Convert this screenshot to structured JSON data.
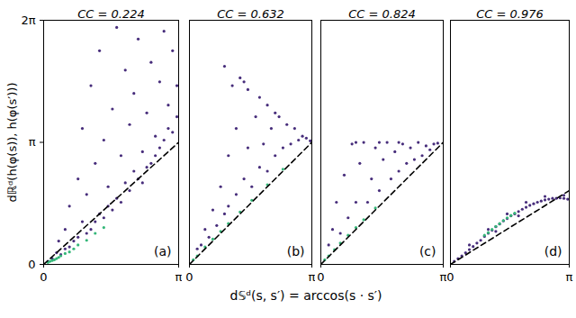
{
  "chart_data": {
    "type": "scatter",
    "xlabel": "d𝕊ᵈ(s, s′) = arccos(s · s′)",
    "ylabel": "dℝᵈ(h(φ(s)), h(φ(s′)))",
    "panels": [
      {
        "type": "scatter",
        "title": "CC = 0.224",
        "annotations": [
          "(a)"
        ],
        "xlim": [
          0,
          3.1416
        ],
        "ylim": [
          0,
          6.2832
        ],
        "xticks": [
          {
            "value": 0,
            "label": "0"
          },
          {
            "value": 3.1416,
            "label": "π"
          }
        ],
        "yticks": [
          {
            "value": 0,
            "label": "0"
          },
          {
            "value": 3.1416,
            "label": "π"
          },
          {
            "value": 6.2832,
            "label": "2π"
          }
        ],
        "series": [
          {
            "type": "scatter",
            "marker": "dot",
            "color": "#472d7b",
            "x": [
              0.1,
              0.2,
              0.3,
              0.35,
              0.4,
              0.5,
              0.5,
              0.6,
              0.6,
              0.7,
              0.8,
              0.8,
              0.9,
              0.9,
              1.0,
              1.0,
              1.1,
              1.1,
              1.2,
              1.2,
              1.3,
              1.3,
              1.4,
              1.4,
              1.5,
              1.5,
              1.6,
              1.6,
              1.7,
              1.7,
              1.8,
              1.8,
              1.9,
              1.9,
              2.0,
              2.0,
              2.1,
              2.1,
              2.2,
              2.2,
              2.3,
              2.3,
              2.4,
              2.4,
              2.5,
              2.5,
              2.6,
              2.6,
              2.7,
              2.7,
              2.8,
              2.8,
              2.9,
              2.9,
              3.0,
              3.0,
              3.1,
              3.1
            ],
            "values": [
              0.08,
              0.15,
              0.3,
              0.6,
              0.25,
              0.9,
              0.4,
              1.5,
              0.45,
              0.6,
              2.2,
              0.7,
              1.1,
              3.5,
              0.8,
              1.8,
              4.6,
              0.9,
              2.6,
              1.1,
              1.3,
              5.5,
              3.2,
              1.2,
              1.5,
              2.0,
              4.0,
              1.4,
              6.1,
              1.7,
              2.8,
              1.6,
              5.0,
              2.1,
              1.9,
              3.6,
              2.4,
              4.4,
              2.2,
              5.8,
              2.9,
              2.1,
              3.9,
              2.5,
              2.6,
              5.2,
              3.3,
              2.8,
              4.7,
              3.0,
              3.2,
              6.0,
              3.5,
              4.1,
              3.4,
              5.5,
              3.8,
              4.6
            ]
          },
          {
            "type": "scatter",
            "marker": "dot",
            "color": "#35b779",
            "x": [
              0.1,
              0.15,
              0.2,
              0.25,
              0.3,
              0.35,
              0.4,
              0.5,
              0.6,
              0.7,
              0.8,
              1.0,
              1.2,
              1.4
            ],
            "values": [
              0.05,
              0.08,
              0.1,
              0.12,
              0.15,
              0.18,
              0.22,
              0.28,
              0.32,
              0.4,
              0.5,
              0.62,
              0.8,
              0.95
            ]
          },
          {
            "type": "line",
            "line_style": "dashed",
            "color": "#000000",
            "x": [
              0,
              3.1416
            ],
            "values": [
              0,
              3.1416
            ]
          }
        ]
      },
      {
        "type": "scatter",
        "title": "CC = 0.632",
        "annotations": [
          "(b)"
        ],
        "tick_labels": "x",
        "xlim": [
          0,
          3.1416
        ],
        "ylim": [
          0,
          6.2832
        ],
        "xticks": [
          {
            "value": 0,
            "label": "0"
          },
          {
            "value": 3.1416,
            "label": "π"
          }
        ],
        "yticks": [
          0,
          3.1416,
          6.2832
        ],
        "series": [
          {
            "type": "scatter",
            "marker": "dot",
            "color": "#472d7b",
            "x": [
              0.2,
              0.3,
              0.4,
              0.5,
              0.6,
              0.7,
              0.8,
              0.9,
              1.0,
              1.0,
              1.1,
              1.2,
              1.2,
              1.3,
              1.4,
              1.5,
              1.5,
              1.6,
              1.7,
              1.8,
              1.8,
              1.9,
              2.0,
              2.0,
              2.1,
              2.2,
              2.3,
              2.4,
              2.5,
              2.6,
              2.7,
              2.8,
              2.9,
              3.0,
              3.1,
              0.9,
              1.4,
              2.2
            ],
            "values": [
              0.4,
              0.5,
              0.9,
              0.7,
              1.4,
              1.0,
              2.0,
              1.3,
              2.8,
              1.5,
              4.6,
              1.8,
              3.5,
              4.8,
              2.2,
              3.0,
              4.5,
              2.0,
              3.8,
              2.5,
              4.3,
              3.1,
              2.4,
              4.1,
              3.5,
              2.8,
              3.8,
              3.0,
              3.6,
              3.1,
              3.5,
              3.2,
              3.3,
              3.25,
              3.18,
              5.1,
              4.7,
              3.9
            ]
          },
          {
            "type": "scatter",
            "marker": "dot",
            "color": "#35b779",
            "x": [
              0.1,
              0.2,
              0.4,
              0.6,
              0.8,
              1.0,
              1.3,
              1.6,
              2.0,
              2.4
            ],
            "values": [
              0.12,
              0.22,
              0.45,
              0.65,
              0.85,
              1.05,
              1.35,
              1.65,
              2.05,
              2.45
            ]
          },
          {
            "type": "line",
            "line_style": "dashed",
            "color": "#000000",
            "x": [
              0,
              3.1416
            ],
            "values": [
              0,
              3.1416
            ]
          }
        ]
      },
      {
        "type": "scatter",
        "title": "CC = 0.824",
        "annotations": [
          "(c)"
        ],
        "tick_labels": "x",
        "xlim": [
          0,
          3.1416
        ],
        "ylim": [
          0,
          6.2832
        ],
        "xticks": [
          {
            "value": 0,
            "label": "0"
          },
          {
            "value": 3.1416,
            "label": "π"
          }
        ],
        "yticks": [
          0,
          3.1416,
          6.2832
        ],
        "series": [
          {
            "type": "scatter",
            "marker": "dot",
            "color": "#472d7b",
            "x": [
              0.2,
              0.3,
              0.4,
              0.5,
              0.6,
              0.7,
              0.8,
              0.9,
              1.0,
              1.1,
              1.2,
              1.3,
              1.4,
              1.5,
              1.6,
              1.7,
              1.8,
              1.9,
              2.0,
              2.1,
              2.2,
              2.3,
              2.4,
              2.5,
              2.6,
              2.7,
              2.8,
              2.9,
              3.0,
              1.5,
              0.9,
              2.0
            ],
            "values": [
              0.5,
              0.9,
              1.6,
              0.8,
              2.3,
              1.2,
              3.1,
              1.6,
              2.6,
              3.14,
              1.6,
              2.2,
              3.0,
              1.9,
              2.7,
              3.14,
              2.2,
              2.9,
              2.4,
              3.1,
              2.6,
              3.0,
              2.7,
              3.14,
              2.8,
              3.05,
              2.95,
              3.1,
              3.12,
              3.14,
              3.14,
              3.14
            ]
          },
          {
            "type": "scatter",
            "marker": "dot",
            "color": "#35b779",
            "x": [
              0.1,
              0.2,
              0.35,
              0.5,
              0.7,
              0.9,
              1.1,
              1.4
            ],
            "values": [
              0.12,
              0.22,
              0.38,
              0.55,
              0.75,
              0.95,
              1.15,
              1.45
            ]
          },
          {
            "type": "line",
            "line_style": "dashed",
            "color": "#000000",
            "x": [
              0,
              3.1416
            ],
            "values": [
              0,
              3.1416
            ]
          }
        ]
      },
      {
        "type": "scatter",
        "title": "CC = 0.976",
        "annotations": [
          "(d)"
        ],
        "tick_labels": "x",
        "xlim": [
          0,
          3.1416
        ],
        "ylim": [
          0,
          6.2832
        ],
        "xticks": [
          {
            "value": 0,
            "label": "0"
          },
          {
            "value": 3.1416,
            "label": "π"
          }
        ],
        "yticks": [
          0,
          3.1416,
          6.2832
        ],
        "series": [
          {
            "type": "scatter",
            "marker": "dot",
            "color": "#472d7b",
            "x": [
              0.1,
              0.2,
              0.3,
              0.4,
              0.5,
              0.6,
              0.7,
              0.8,
              0.9,
              1.0,
              1.1,
              1.2,
              1.3,
              1.4,
              1.5,
              1.6,
              1.7,
              1.8,
              1.9,
              2.0,
              2.1,
              2.2,
              2.3,
              2.4,
              2.5,
              2.6,
              2.7,
              2.8,
              2.9,
              3.0,
              3.1,
              0.5,
              1.0,
              1.5,
              2.0,
              2.5,
              3.0,
              1.2,
              1.8
            ],
            "values": [
              0.08,
              0.15,
              0.22,
              0.3,
              0.38,
              0.46,
              0.55,
              0.62,
              0.72,
              0.8,
              0.88,
              0.97,
              1.04,
              1.12,
              1.18,
              1.25,
              1.3,
              1.36,
              1.42,
              1.47,
              1.52,
              1.56,
              1.6,
              1.63,
              1.66,
              1.68,
              1.7,
              1.7,
              1.71,
              1.7,
              1.68,
              0.5,
              0.9,
              1.3,
              1.6,
              1.75,
              1.78,
              0.85,
              1.25
            ]
          },
          {
            "type": "scatter",
            "marker": "dot",
            "color": "#35b779",
            "x": [
              0.9,
              1.0,
              1.1,
              1.2,
              1.3,
              1.4,
              1.5,
              1.6,
              1.7
            ],
            "values": [
              0.75,
              0.82,
              0.9,
              0.98,
              1.05,
              1.13,
              1.2,
              1.26,
              1.32
            ]
          },
          {
            "type": "line",
            "line_style": "dashed",
            "color": "#000000",
            "x": [
              0,
              3.1416
            ],
            "values": [
              0,
              1.9
            ]
          }
        ]
      }
    ]
  }
}
